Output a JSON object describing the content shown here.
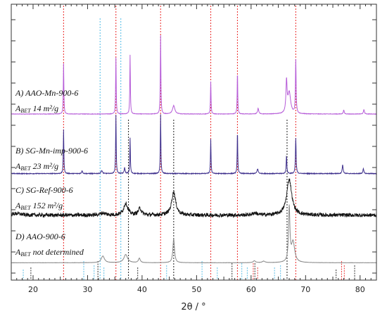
{
  "chart_data": {
    "type": "line",
    "xlabel": "2θ / °",
    "xlim": [
      16,
      83
    ],
    "x_ticks": [
      20,
      30,
      40,
      50,
      60,
      70,
      80
    ],
    "colors": {
      "A": "#b65cd8",
      "B": "#3e2f8c",
      "C": "#111111",
      "D": "#8a8a8a",
      "red_ref": "#ec3a3a",
      "blue_ref": "#5fc0e8",
      "black_ref": "#333333"
    },
    "series": [
      {
        "key": "A",
        "name": "A) AAO-Mn-900-6",
        "bet_prefix": "A",
        "bet_sub": "BET",
        "bet_value": " 14 m²/g",
        "baseline": 0.05,
        "noise": 0.004,
        "peaks": [
          [
            25.6,
            0.9,
            0.12
          ],
          [
            35.2,
            1.0,
            0.12
          ],
          [
            37.8,
            1.05,
            0.12
          ],
          [
            43.4,
            1.4,
            0.12
          ],
          [
            45.8,
            0.15,
            0.5
          ],
          [
            52.6,
            0.58,
            0.12
          ],
          [
            57.5,
            0.75,
            0.12
          ],
          [
            61.3,
            0.1,
            0.25
          ],
          [
            66.5,
            0.55,
            0.25
          ],
          [
            67.0,
            0.38,
            0.6
          ],
          [
            68.2,
            0.95,
            0.15
          ],
          [
            77.0,
            0.07,
            0.2
          ],
          [
            80.7,
            0.08,
            0.2
          ]
        ]
      },
      {
        "key": "B",
        "name": "B) SG-Mn-imp-900-6",
        "bet_prefix": "A",
        "bet_sub": "BET",
        "bet_value": " 23 m²/g",
        "baseline": 0.04,
        "noise": 0.006,
        "peaks": [
          [
            25.6,
            0.75,
            0.12
          ],
          [
            29.0,
            0.05,
            0.2
          ],
          [
            32.6,
            0.05,
            0.3
          ],
          [
            35.2,
            1.0,
            0.12
          ],
          [
            36.8,
            0.1,
            0.2
          ],
          [
            37.8,
            0.6,
            0.12
          ],
          [
            43.4,
            1.0,
            0.12
          ],
          [
            52.6,
            0.58,
            0.12
          ],
          [
            57.5,
            0.72,
            0.12
          ],
          [
            61.2,
            0.08,
            0.25
          ],
          [
            66.5,
            0.3,
            0.15
          ],
          [
            68.2,
            0.6,
            0.15
          ],
          [
            76.8,
            0.15,
            0.2
          ],
          [
            80.6,
            0.08,
            0.2
          ]
        ]
      },
      {
        "key": "C",
        "name": "C) SG-Ref-900-6",
        "bet_prefix": "A",
        "bet_sub": "BET",
        "bet_value": " 152 m²/g",
        "baseline": 0.12,
        "noise": 0.045,
        "peaks": [
          [
            17.0,
            0.04,
            2.0
          ],
          [
            32.8,
            0.05,
            1.2
          ],
          [
            37.0,
            0.28,
            0.9
          ],
          [
            39.6,
            0.16,
            0.7
          ],
          [
            45.8,
            0.55,
            0.9
          ],
          [
            60.7,
            0.05,
            1.0
          ],
          [
            67.0,
            0.85,
            1.1
          ]
        ]
      },
      {
        "key": "D",
        "name": "D) AAO-900-6",
        "bet_prefix": "A",
        "bet_sub": "BET",
        "bet_value": " not determined",
        "baseline": 0.05,
        "noise": 0.003,
        "peaks": [
          [
            32.8,
            0.18,
            0.7
          ],
          [
            37.0,
            0.22,
            0.8
          ],
          [
            39.5,
            0.12,
            0.4
          ],
          [
            45.8,
            0.65,
            0.35
          ],
          [
            60.6,
            0.05,
            0.5
          ],
          [
            62.3,
            0.04,
            0.6
          ],
          [
            67.0,
            1.45,
            0.3
          ],
          [
            67.7,
            0.55,
            0.7
          ]
        ]
      }
    ],
    "reference_lines": {
      "red": [
        25.6,
        35.2,
        43.4,
        52.6,
        57.5,
        68.2
      ],
      "blue": [
        32.3,
        36.1
      ],
      "black": [
        37.5,
        45.8,
        66.6
      ]
    },
    "reference_sticks": {
      "red": [
        [
          60.4,
          0.08
        ],
        [
          61.2,
          0.06
        ],
        [
          76.6,
          0.09
        ],
        [
          77.1,
          0.07
        ]
      ],
      "blue": [
        [
          18.2,
          0.05
        ],
        [
          29.3,
          0.09
        ],
        [
          31.2,
          0.07
        ],
        [
          33.0,
          0.06
        ],
        [
          44.5,
          0.07
        ],
        [
          51.0,
          0.09
        ],
        [
          53.8,
          0.06
        ],
        [
          58.3,
          0.08
        ],
        [
          59.3,
          0.06
        ],
        [
          64.3,
          0.06
        ],
        [
          65.4,
          0.07
        ]
      ],
      "black": [
        [
          19.6,
          0.06
        ],
        [
          31.9,
          0.09
        ],
        [
          39.2,
          0.06
        ],
        [
          56.5,
          0.08
        ],
        [
          60.7,
          0.08
        ],
        [
          75.6,
          0.05
        ],
        [
          79.0,
          0.07
        ]
      ]
    }
  }
}
